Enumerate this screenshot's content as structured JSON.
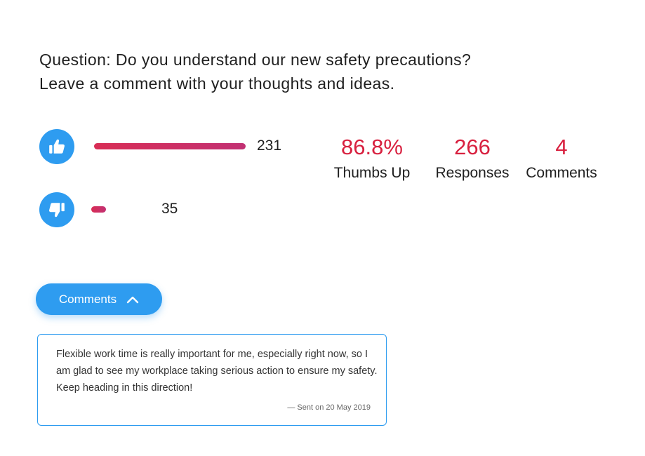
{
  "question": {
    "line1": "Question: Do you understand our new safety precautions?",
    "line2": "Leave a comment with your thoughts and ideas."
  },
  "votes": {
    "up": {
      "icon": "thumbs-up-icon",
      "count": "231",
      "fraction": 0.87
    },
    "down": {
      "icon": "thumbs-down-icon",
      "count": "35",
      "fraction": 0.13
    }
  },
  "stats": [
    {
      "value": "86.8%",
      "label": "Thumbs Up"
    },
    {
      "value": "266",
      "label": "Responses"
    },
    {
      "value": "4",
      "label": "Comments"
    }
  ],
  "comments_toggle": {
    "label": "Comments",
    "icon": "chevron-up-icon"
  },
  "comment": {
    "text": "Flexible work time is really important for me, especially right now, so I am glad to see my workplace taking serious action to ensure my safety. Keep heading in this direction!",
    "meta": "— Sent on 20 May 2019"
  },
  "colors": {
    "accent_blue": "#2e9cf0",
    "stat_red": "#d8203f",
    "bar_start": "#d82d55",
    "bar_end": "#c23173"
  }
}
